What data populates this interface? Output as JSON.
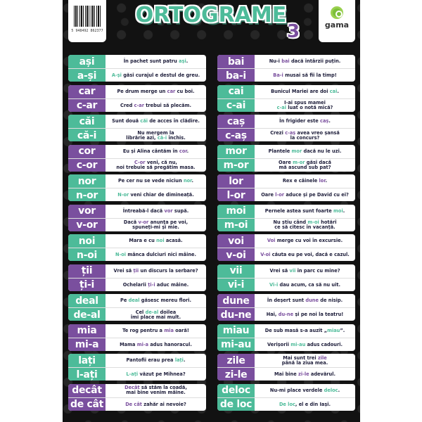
{
  "header": {
    "title": "ORTOGRAME",
    "title_number": "3",
    "barcode_number": "5 948492 862377",
    "logo": "gama"
  },
  "colors": {
    "teal": "#4dbb99",
    "purple": "#7a4f9e",
    "background": "#121212"
  },
  "left_column": [
    {
      "color": "teal",
      "rows": [
        {
          "word": "ași",
          "pre": "În pachet sunt patru ",
          "hl": "ași",
          "post": "."
        },
        {
          "word": "a-și",
          "pre": "",
          "hl": "A-și",
          "post": " găsi curajul e destul de greu."
        }
      ]
    },
    {
      "color": "purple",
      "rows": [
        {
          "word": "car",
          "pre": "Pe drum merge un ",
          "hl": "car",
          "post": " cu boi."
        },
        {
          "word": "c-ar",
          "pre": "Cred ",
          "hl": "c-ar",
          "post": " trebui să plecăm."
        }
      ]
    },
    {
      "color": "teal",
      "rows": [
        {
          "word": "căi",
          "pre": "Sunt două ",
          "hl": "căi",
          "post": " de acces în clădire."
        },
        {
          "word": "că-i",
          "pre": "Nu mergem la\nlibrărie azi, ",
          "hl": "că-i",
          "post": " închis."
        }
      ]
    },
    {
      "color": "purple",
      "rows": [
        {
          "word": "cor",
          "pre": "Eu și Alina cântăm în ",
          "hl": "cor",
          "post": "."
        },
        {
          "word": "c-or",
          "pre": "",
          "hl": "C-or",
          "post": " veni, că nu,\nnoi trebuie să pregătim masa."
        }
      ]
    },
    {
      "color": "teal",
      "rows": [
        {
          "word": "nor",
          "pre": "Pe cer nu se vede niciun ",
          "hl": "nor",
          "post": "."
        },
        {
          "word": "n-or",
          "pre": "",
          "hl": "N-or",
          "post": " veni chiar de dimineață."
        }
      ]
    },
    {
      "color": "purple",
      "rows": [
        {
          "word": "vor",
          "pre": "Întreabă-l dacă ",
          "hl": "vor",
          "post": " supă."
        },
        {
          "word": "v-or",
          "pre": "Dacă ",
          "hl": "v-or",
          "post": " anunța pe voi,\nspuneți-mi și mie."
        }
      ]
    },
    {
      "color": "teal",
      "rows": [
        {
          "word": "noi",
          "pre": "Mara e cu ",
          "hl": "noi",
          "post": " acasă."
        },
        {
          "word": "n-oi",
          "pre": "",
          "hl": "N-oi",
          "post": " mânca dulciuri nici mâine."
        }
      ]
    },
    {
      "color": "purple",
      "rows": [
        {
          "word": "ții",
          "pre": "Vrei să ",
          "hl": "ții",
          "post": " un discurs la serbare?"
        },
        {
          "word": "ți-i",
          "pre": "Ochelarii ",
          "hl": "ți-i",
          "post": " aduc mâine."
        }
      ]
    },
    {
      "color": "teal",
      "rows": [
        {
          "word": "deal",
          "pre": "Pe ",
          "hl": "deal",
          "post": " găsesc mereu flori."
        },
        {
          "word": "de-al",
          "pre": "Cel ",
          "hl": "de-al",
          "post": " doilea\nîmi place mai mult."
        }
      ]
    },
    {
      "color": "purple",
      "rows": [
        {
          "word": "mia",
          "pre": "Te rog pentru a ",
          "hl": "mia",
          "post": " oară!"
        },
        {
          "word": "mi-a",
          "pre": "Mama ",
          "hl": "mi-a",
          "post": " adus hanoracul."
        }
      ]
    },
    {
      "color": "teal",
      "rows": [
        {
          "word": "lați",
          "pre": "Pantofii erau prea ",
          "hl": "lați",
          "post": "."
        },
        {
          "word": "l-ați",
          "pre": "",
          "hl": "L-ați",
          "post": " văzut pe Mihnea?"
        }
      ]
    },
    {
      "color": "purple",
      "rows": [
        {
          "word": "decât",
          "pre": "",
          "hl": "Decât",
          "post": " să stăm la coadă,\nmai bine venim mâine."
        },
        {
          "word": "de cât",
          "pre": "",
          "hl": "De cât",
          "post": " zahăr ai nevoie?"
        }
      ]
    }
  ],
  "right_column": [
    {
      "color": "purple",
      "rows": [
        {
          "word": "bai",
          "pre": "Nu-i ",
          "hl": "bai",
          "post": " dacă întârzii puțin."
        },
        {
          "word": "ba-i",
          "pre": "",
          "hl": "Ba-i",
          "post": " musai să fii la timp!"
        }
      ]
    },
    {
      "color": "teal",
      "rows": [
        {
          "word": "cai",
          "pre": "Bunicul Mariei are doi ",
          "hl": "cai",
          "post": "."
        },
        {
          "word": "c-ai",
          "pre": "I-ai spus mamei\n",
          "hl": "c-ai",
          "post": " luat o notă mică?"
        }
      ]
    },
    {
      "color": "purple",
      "rows": [
        {
          "word": "caș",
          "pre": "În frigider este ",
          "hl": "caș",
          "post": "."
        },
        {
          "word": "c-aș",
          "pre": "Crezi ",
          "hl": "c-aș",
          "post": " avea vreo șansă\nla concurs?"
        }
      ]
    },
    {
      "color": "teal",
      "rows": [
        {
          "word": "mor",
          "pre": "Plantele ",
          "hl": "mor",
          "post": " dacă nu le uzi."
        },
        {
          "word": "m-or",
          "pre": "Oare ",
          "hl": "m-or",
          "post": " găsi dacă\nmă ascund sub pat?"
        }
      ]
    },
    {
      "color": "purple",
      "rows": [
        {
          "word": "lor",
          "pre": "Rex e câinele ",
          "hl": "lor",
          "post": "."
        },
        {
          "word": "l-or",
          "pre": "Oare ",
          "hl": "l-or",
          "post": " aduce și pe David cu ei?"
        }
      ]
    },
    {
      "color": "teal",
      "rows": [
        {
          "word": "moi",
          "pre": "Pernele astea sunt foarte ",
          "hl": "moi",
          "post": "."
        },
        {
          "word": "m-oi",
          "pre": "Nu știu când ",
          "hl": "m-oi",
          "post": " hotărî\nce să citesc în vacanță."
        }
      ]
    },
    {
      "color": "purple",
      "rows": [
        {
          "word": "voi",
          "pre": "",
          "hl": "Voi",
          "post": " merge cu voi în excursie."
        },
        {
          "word": "v-oi",
          "pre": "",
          "hl": "V-oi",
          "post": " căuta eu pe voi, dacă e cazul."
        }
      ]
    },
    {
      "color": "teal",
      "rows": [
        {
          "word": "vii",
          "pre": "Vrei să ",
          "hl": "vii",
          "post": " în parc cu mine?"
        },
        {
          "word": "vi-i",
          "pre": "",
          "hl": "Vi-i",
          "post": " dau acum, ca să nu uit."
        }
      ]
    },
    {
      "color": "purple",
      "rows": [
        {
          "word": "dune",
          "pre": "În deșert sunt ",
          "hl": "dune",
          "post": " de nisip."
        },
        {
          "word": "du-ne",
          "pre": "Hai, ",
          "hl": "du-ne",
          "post": " și pe noi la teatru!"
        }
      ]
    },
    {
      "color": "teal",
      "rows": [
        {
          "word": "miau",
          "pre": "De sub masă s-a auzit „",
          "hl": "miau",
          "post": "”."
        },
        {
          "word": "mi-au",
          "pre": "Verișorii ",
          "hl": "mi-au",
          "post": " adus cadouri."
        }
      ]
    },
    {
      "color": "purple",
      "rows": [
        {
          "word": "zile",
          "pre": "Mai sunt trei ",
          "hl": "zile",
          "post": "\npână la ziua mea."
        },
        {
          "word": "zi-le",
          "pre": "Mai bine ",
          "hl": "zi-le",
          "post": " adevărul."
        }
      ]
    },
    {
      "color": "teal",
      "rows": [
        {
          "word": "deloc",
          "pre": "Nu-mi place verdele ",
          "hl": "deloc",
          "post": "."
        },
        {
          "word": "de loc",
          "pre": "",
          "hl": "De loc",
          "post": ", el e din Iași."
        }
      ]
    }
  ]
}
